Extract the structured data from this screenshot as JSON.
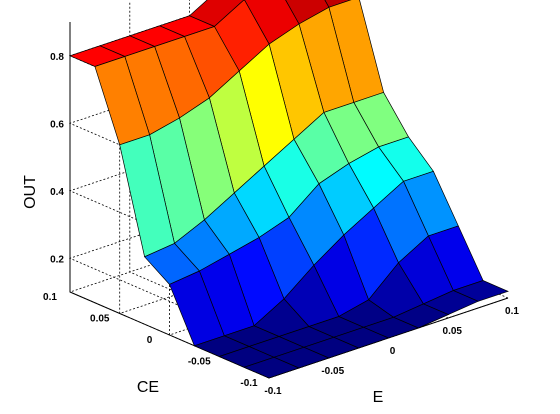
{
  "chart_data": {
    "type": "surface3d",
    "title": "",
    "xlabel": "E",
    "ylabel": "CE",
    "zlabel": "OUT",
    "x": [
      -0.1,
      -0.075,
      -0.05,
      -0.025,
      0,
      0.025,
      0.05,
      0.075,
      0.1
    ],
    "y": [
      -0.1,
      -0.075,
      -0.05,
      -0.025,
      0,
      0.025,
      0.05,
      0.075,
      0.1
    ],
    "xlim": [
      -0.1,
      0.1
    ],
    "ylim": [
      -0.1,
      0.1
    ],
    "zlim": [
      0.1,
      0.9
    ],
    "xticks": [
      "-0.1",
      "-0.05",
      "0",
      "0.05",
      "0.1"
    ],
    "yticks": [
      "-0.1",
      "-0.05",
      "0",
      "0.05",
      "0.1"
    ],
    "zticks": [
      "0.2",
      "0.4",
      "0.6",
      "0.8"
    ],
    "xtick_values": [
      -0.1,
      -0.05,
      0,
      0.05,
      0.1
    ],
    "ytick_values": [
      -0.1,
      -0.05,
      0,
      0.05,
      0.1
    ],
    "ztick_values": [
      0.2,
      0.4,
      0.6,
      0.8
    ],
    "grid": true,
    "colormap": "jet",
    "z": [
      [
        0.1,
        0.1,
        0.1,
        0.1,
        0.1,
        0.1,
        0.11,
        0.12,
        0.12
      ],
      [
        0.1,
        0.1,
        0.1,
        0.1,
        0.1,
        0.1,
        0.11,
        0.12,
        0.12
      ],
      [
        0.1,
        0.1,
        0.1,
        0.1,
        0.1,
        0.12,
        0.2,
        0.25,
        0.25
      ],
      [
        0.1,
        0.1,
        0.1,
        0.15,
        0.22,
        0.28,
        0.33,
        0.38,
        0.38
      ],
      [
        0.25,
        0.26,
        0.28,
        0.3,
        0.33,
        0.4,
        0.43,
        0.45,
        0.45
      ],
      [
        0.3,
        0.31,
        0.35,
        0.4,
        0.45,
        0.5,
        0.55,
        0.55,
        0.55
      ],
      [
        0.6,
        0.6,
        0.62,
        0.65,
        0.7,
        0.75,
        0.78,
        0.8,
        0.8
      ],
      [
        0.8,
        0.8,
        0.8,
        0.8,
        0.8,
        0.85,
        0.88,
        0.9,
        0.9
      ],
      [
        0.8,
        0.8,
        0.8,
        0.8,
        0.8,
        0.85,
        0.88,
        0.9,
        0.9
      ]
    ]
  }
}
